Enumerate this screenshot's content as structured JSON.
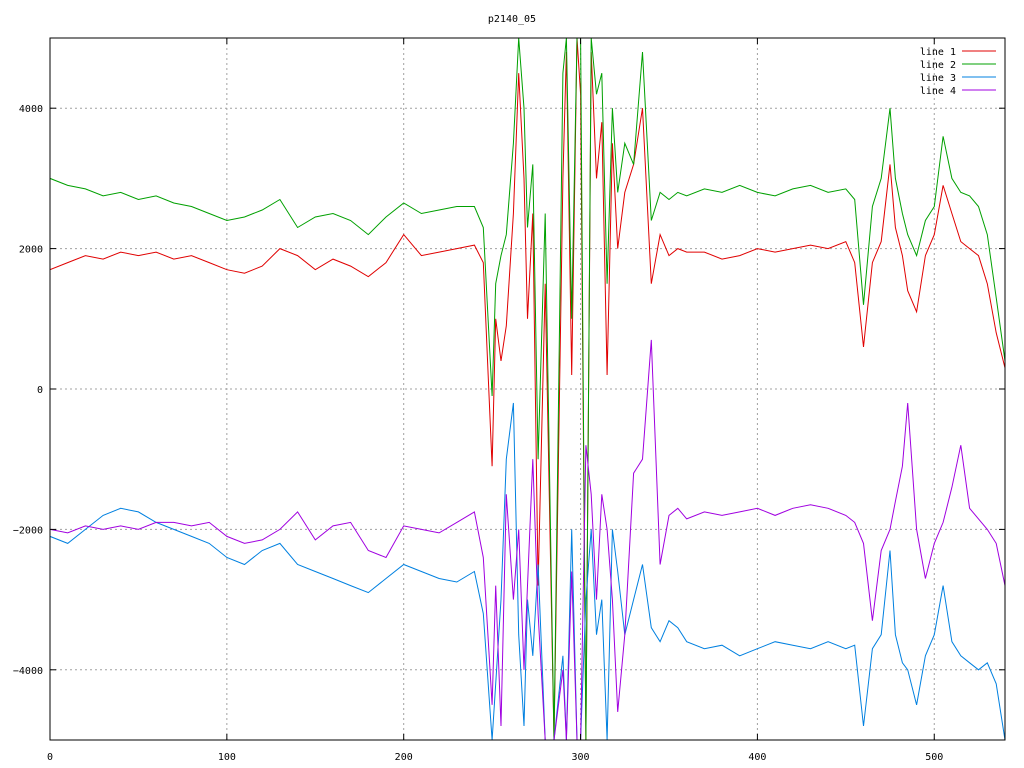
{
  "chart_data": {
    "type": "line",
    "title": "p2140_05",
    "xlabel": "",
    "ylabel": "",
    "xlim": [
      0,
      540
    ],
    "ylim": [
      -5000,
      5000
    ],
    "grid": true,
    "legend_position": "top-right",
    "x_ticks": [
      0,
      100,
      200,
      300,
      400,
      500
    ],
    "y_ticks": [
      -4000,
      -2000,
      0,
      2000,
      4000
    ],
    "series": [
      {
        "name": "line 1",
        "color": "#e00000",
        "x": [
          0,
          10,
          20,
          30,
          40,
          50,
          60,
          70,
          80,
          90,
          100,
          110,
          120,
          130,
          140,
          150,
          160,
          170,
          180,
          190,
          200,
          210,
          220,
          230,
          240,
          245,
          250,
          252,
          255,
          258,
          262,
          265,
          268,
          270,
          273,
          276,
          280,
          285,
          290,
          292,
          295,
          298,
          300,
          303,
          306,
          309,
          312,
          315,
          318,
          321,
          325,
          330,
          335,
          340,
          345,
          350,
          355,
          360,
          370,
          380,
          390,
          400,
          410,
          420,
          430,
          440,
          450,
          455,
          460,
          465,
          470,
          475,
          478,
          482,
          485,
          490,
          495,
          500,
          505,
          510,
          515,
          520,
          525,
          530,
          535,
          540
        ],
        "y": [
          1700,
          1800,
          1900,
          1850,
          1950,
          1900,
          1950,
          1850,
          1900,
          1800,
          1700,
          1650,
          1750,
          2000,
          1900,
          1700,
          1850,
          1750,
          1600,
          1800,
          2200,
          1900,
          1950,
          2000,
          2050,
          1800,
          -1100,
          1000,
          400,
          900,
          2500,
          4500,
          3000,
          1000,
          2500,
          -2800,
          1500,
          -5000,
          3000,
          4800,
          200,
          5000,
          4200,
          -5000,
          4800,
          3000,
          3800,
          200,
          3500,
          2000,
          2800,
          3200,
          4000,
          1500,
          2200,
          1900,
          2000,
          1950,
          1950,
          1850,
          1900,
          2000,
          1950,
          2000,
          2050,
          2000,
          2100,
          1800,
          600,
          1800,
          2100,
          3200,
          2300,
          1900,
          1400,
          1100,
          1900,
          2200,
          2900,
          2500,
          2100,
          2000,
          1900,
          1500,
          800,
          300
        ]
      },
      {
        "name": "line 2",
        "color": "#00a000",
        "x": [
          0,
          10,
          20,
          30,
          40,
          50,
          60,
          70,
          80,
          90,
          100,
          110,
          120,
          130,
          140,
          150,
          160,
          170,
          180,
          190,
          200,
          210,
          220,
          230,
          240,
          245,
          250,
          252,
          255,
          258,
          262,
          265,
          268,
          270,
          273,
          276,
          280,
          285,
          290,
          292,
          295,
          298,
          300,
          303,
          306,
          309,
          312,
          315,
          318,
          321,
          325,
          330,
          335,
          340,
          345,
          350,
          355,
          360,
          370,
          380,
          390,
          400,
          410,
          420,
          430,
          440,
          450,
          455,
          460,
          465,
          470,
          475,
          478,
          482,
          485,
          490,
          495,
          500,
          505,
          510,
          515,
          520,
          525,
          530,
          535,
          540
        ],
        "y": [
          3000,
          2900,
          2850,
          2750,
          2800,
          2700,
          2750,
          2650,
          2600,
          2500,
          2400,
          2450,
          2550,
          2700,
          2300,
          2450,
          2500,
          2400,
          2200,
          2450,
          2650,
          2500,
          2550,
          2600,
          2600,
          2300,
          -100,
          1500,
          1900,
          2200,
          3500,
          5000,
          4000,
          2300,
          3200,
          -1000,
          2500,
          -5000,
          4500,
          5000,
          1000,
          5000,
          5000,
          -5000,
          5000,
          4200,
          4500,
          1500,
          4000,
          2800,
          3500,
          3200,
          4800,
          2400,
          2800,
          2700,
          2800,
          2750,
          2850,
          2800,
          2900,
          2800,
          2750,
          2850,
          2900,
          2800,
          2850,
          2700,
          1200,
          2600,
          3000,
          4000,
          3000,
          2500,
          2200,
          1900,
          2400,
          2600,
          3600,
          3000,
          2800,
          2750,
          2600,
          2200,
          1300,
          400
        ]
      },
      {
        "name": "line 3",
        "color": "#0080e0",
        "x": [
          0,
          10,
          20,
          30,
          40,
          50,
          60,
          70,
          80,
          90,
          100,
          110,
          120,
          130,
          140,
          150,
          160,
          170,
          180,
          190,
          200,
          210,
          220,
          230,
          240,
          245,
          250,
          252,
          255,
          258,
          262,
          265,
          268,
          270,
          273,
          276,
          280,
          285,
          290,
          292,
          295,
          298,
          300,
          303,
          306,
          309,
          312,
          315,
          318,
          321,
          325,
          330,
          335,
          340,
          345,
          350,
          355,
          360,
          370,
          380,
          390,
          400,
          410,
          420,
          430,
          440,
          450,
          455,
          460,
          465,
          470,
          475,
          478,
          482,
          485,
          490,
          495,
          500,
          505,
          510,
          515,
          520,
          525,
          530,
          535,
          540
        ],
        "y": [
          -2100,
          -2200,
          -2000,
          -1800,
          -1700,
          -1750,
          -1900,
          -2000,
          -2100,
          -2200,
          -2400,
          -2500,
          -2300,
          -2200,
          -2500,
          -2600,
          -2700,
          -2800,
          -2900,
          -2700,
          -2500,
          -2600,
          -2700,
          -2750,
          -2600,
          -3200,
          -5000,
          -4200,
          -3000,
          -1000,
          -200,
          -3500,
          -4800,
          -3000,
          -3800,
          -2500,
          -5000,
          -5000,
          -3800,
          -5000,
          -2000,
          -5000,
          -5000,
          -3000,
          -2000,
          -3500,
          -3000,
          -5000,
          -2000,
          -2600,
          -3500,
          -3000,
          -2500,
          -3400,
          -3600,
          -3300,
          -3400,
          -3600,
          -3700,
          -3650,
          -3800,
          -3700,
          -3600,
          -3650,
          -3700,
          -3600,
          -3700,
          -3650,
          -4800,
          -3700,
          -3500,
          -2300,
          -3500,
          -3900,
          -4000,
          -4500,
          -3800,
          -3500,
          -2800,
          -3600,
          -3800,
          -3900,
          -4000,
          -3900,
          -4200,
          -5000
        ]
      },
      {
        "name": "line 4",
        "color": "#a000e0",
        "x": [
          0,
          10,
          20,
          30,
          40,
          50,
          60,
          70,
          80,
          90,
          100,
          110,
          120,
          130,
          140,
          150,
          160,
          170,
          180,
          190,
          200,
          210,
          220,
          230,
          240,
          245,
          250,
          252,
          255,
          258,
          262,
          265,
          268,
          270,
          273,
          276,
          280,
          285,
          290,
          292,
          295,
          298,
          300,
          303,
          306,
          309,
          312,
          315,
          318,
          321,
          325,
          330,
          335,
          340,
          345,
          350,
          355,
          360,
          370,
          380,
          390,
          400,
          410,
          420,
          430,
          440,
          450,
          455,
          460,
          465,
          470,
          475,
          478,
          482,
          485,
          490,
          495,
          500,
          505,
          510,
          515,
          520,
          525,
          530,
          535,
          540
        ],
        "y": [
          -2000,
          -2050,
          -1950,
          -2000,
          -1950,
          -2000,
          -1900,
          -1900,
          -1950,
          -1900,
          -2100,
          -2200,
          -2150,
          -2000,
          -1750,
          -2150,
          -1950,
          -1900,
          -2300,
          -2400,
          -1950,
          -2000,
          -2050,
          -1900,
          -1750,
          -2400,
          -4500,
          -2800,
          -4800,
          -1500,
          -3000,
          -2000,
          -4000,
          -2800,
          -1000,
          -3200,
          -5000,
          -5000,
          -4000,
          -5000,
          -2600,
          -5000,
          -5000,
          -800,
          -1500,
          -3000,
          -1500,
          -2000,
          -3000,
          -4600,
          -3500,
          -1200,
          -1000,
          700,
          -2500,
          -1800,
          -1700,
          -1850,
          -1750,
          -1800,
          -1750,
          -1700,
          -1800,
          -1700,
          -1650,
          -1700,
          -1800,
          -1900,
          -2200,
          -3300,
          -2300,
          -2000,
          -1600,
          -1100,
          -200,
          -2000,
          -2700,
          -2200,
          -1900,
          -1400,
          -800,
          -1700,
          -1850,
          -2000,
          -2200,
          -2800
        ]
      }
    ]
  }
}
